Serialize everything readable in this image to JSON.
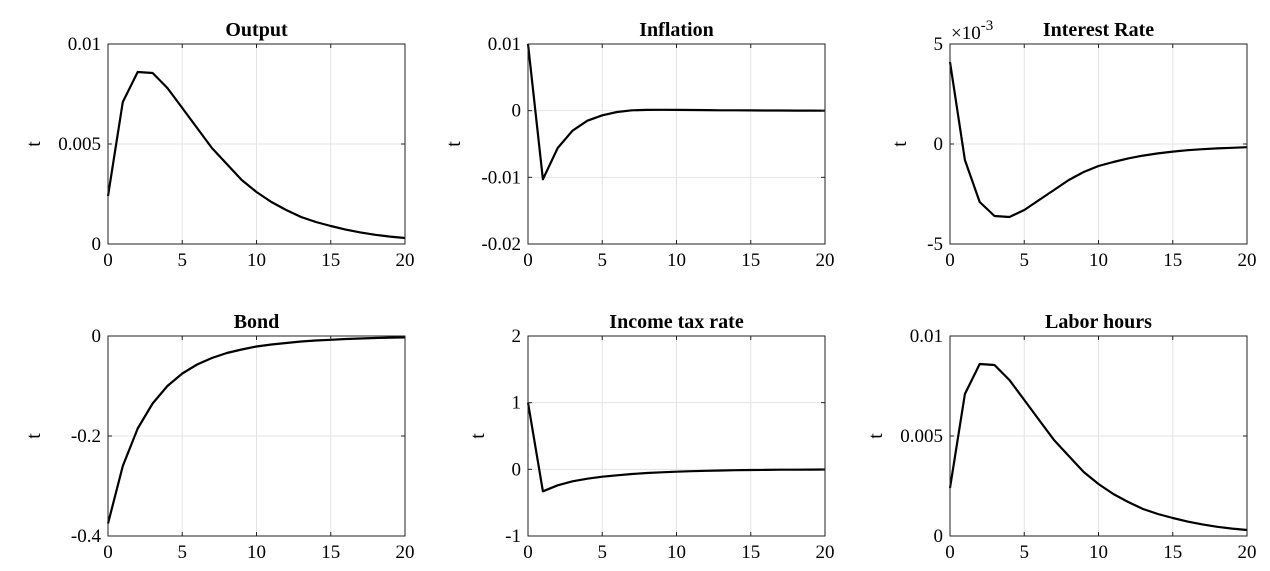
{
  "chart_data": [
    {
      "type": "line",
      "title": "Output",
      "ylabel": "t",
      "xlim": [
        0,
        20
      ],
      "ylim": [
        0,
        0.01
      ],
      "xticks": [
        "0",
        "5",
        "10",
        "15",
        "20"
      ],
      "yticks": [
        "0",
        "0.005",
        "0.01"
      ],
      "grid": true,
      "x": [
        0,
        1,
        2,
        3,
        4,
        5,
        6,
        7,
        8,
        9,
        10,
        11,
        12,
        13,
        14,
        15,
        16,
        17,
        18,
        19,
        20
      ],
      "y": [
        0.0024,
        0.0071,
        0.0086,
        0.00855,
        0.0078,
        0.0068,
        0.0058,
        0.0048,
        0.004,
        0.0032,
        0.0026,
        0.0021,
        0.0017,
        0.00135,
        0.0011,
        0.0009,
        0.00072,
        0.00058,
        0.00046,
        0.00037,
        0.0003
      ]
    },
    {
      "type": "line",
      "title": "Inflation",
      "ylabel": "t",
      "xlim": [
        0,
        20
      ],
      "ylim": [
        -0.02,
        0.01
      ],
      "xticks": [
        "0",
        "5",
        "10",
        "15",
        "20"
      ],
      "yticks": [
        "-0.02",
        "-0.01",
        "0",
        "0.01"
      ],
      "grid": true,
      "x": [
        0,
        1,
        2,
        3,
        4,
        5,
        6,
        7,
        8,
        9,
        10,
        11,
        12,
        13,
        14,
        15,
        16,
        17,
        18,
        19,
        20
      ],
      "y": [
        0.01,
        -0.0103,
        -0.0056,
        -0.003,
        -0.0015,
        -0.0007,
        -0.0002,
        5e-05,
        0.00012,
        0.00013,
        0.00012,
        0.0001,
        8e-05,
        6e-05,
        5e-05,
        4e-05,
        3e-05,
        2e-05,
        1e-05,
        1e-05,
        0.0
      ]
    },
    {
      "type": "line",
      "title": "Interest Rate",
      "ylabel": "t",
      "y_multiplier": "×10",
      "y_exponent": "-3",
      "xlim": [
        0,
        20
      ],
      "ylim": [
        -5,
        5
      ],
      "xticks": [
        "0",
        "5",
        "10",
        "15",
        "20"
      ],
      "yticks": [
        "-5",
        "0",
        "5"
      ],
      "grid": true,
      "x": [
        0,
        1,
        2,
        3,
        4,
        5,
        6,
        7,
        8,
        9,
        10,
        11,
        12,
        13,
        14,
        15,
        16,
        17,
        18,
        19,
        20
      ],
      "y": [
        4.1,
        -0.8,
        -2.9,
        -3.6,
        -3.65,
        -3.3,
        -2.8,
        -2.3,
        -1.8,
        -1.4,
        -1.1,
        -0.9,
        -0.72,
        -0.58,
        -0.47,
        -0.38,
        -0.31,
        -0.26,
        -0.22,
        -0.19,
        -0.16
      ]
    },
    {
      "type": "line",
      "title": "Bond",
      "ylabel": "t",
      "xlim": [
        0,
        20
      ],
      "ylim": [
        -0.4,
        0
      ],
      "xticks": [
        "0",
        "5",
        "10",
        "15",
        "20"
      ],
      "yticks": [
        "-0.4",
        "-0.2",
        "0"
      ],
      "grid": true,
      "x": [
        0,
        1,
        2,
        3,
        4,
        5,
        6,
        7,
        8,
        9,
        10,
        11,
        12,
        13,
        14,
        15,
        16,
        17,
        18,
        19,
        20
      ],
      "y": [
        -0.375,
        -0.26,
        -0.185,
        -0.135,
        -0.1,
        -0.075,
        -0.057,
        -0.044,
        -0.034,
        -0.027,
        -0.021,
        -0.017,
        -0.014,
        -0.011,
        -0.009,
        -0.0075,
        -0.006,
        -0.005,
        -0.004,
        -0.0033,
        -0.0027
      ]
    },
    {
      "type": "line",
      "title": "Income tax rate",
      "ylabel": "t",
      "xlim": [
        0,
        20
      ],
      "ylim": [
        -1,
        2
      ],
      "xticks": [
        "0",
        "5",
        "10",
        "15",
        "20"
      ],
      "yticks": [
        "-1",
        "0",
        "1",
        "2"
      ],
      "grid": true,
      "x": [
        0,
        1,
        2,
        3,
        4,
        5,
        6,
        7,
        8,
        9,
        10,
        11,
        12,
        13,
        14,
        15,
        16,
        17,
        18,
        19,
        20
      ],
      "y": [
        1.0,
        -0.33,
        -0.24,
        -0.18,
        -0.14,
        -0.11,
        -0.09,
        -0.07,
        -0.055,
        -0.045,
        -0.035,
        -0.028,
        -0.022,
        -0.017,
        -0.013,
        -0.01,
        -0.008,
        -0.006,
        -0.005,
        -0.004,
        -0.003
      ]
    },
    {
      "type": "line",
      "title": "Labor hours",
      "ylabel": "t",
      "xlim": [
        0,
        20
      ],
      "ylim": [
        0,
        0.01
      ],
      "xticks": [
        "0",
        "5",
        "10",
        "15",
        "20"
      ],
      "yticks": [
        "0",
        "0.005",
        "0.01"
      ],
      "grid": true,
      "x": [
        0,
        1,
        2,
        3,
        4,
        5,
        6,
        7,
        8,
        9,
        10,
        11,
        12,
        13,
        14,
        15,
        16,
        17,
        18,
        19,
        20
      ],
      "y": [
        0.0024,
        0.0071,
        0.0086,
        0.00855,
        0.0078,
        0.0068,
        0.0058,
        0.0048,
        0.004,
        0.0032,
        0.0026,
        0.0021,
        0.0017,
        0.00135,
        0.0011,
        0.0009,
        0.00072,
        0.00058,
        0.00046,
        0.00037,
        0.0003
      ]
    }
  ]
}
